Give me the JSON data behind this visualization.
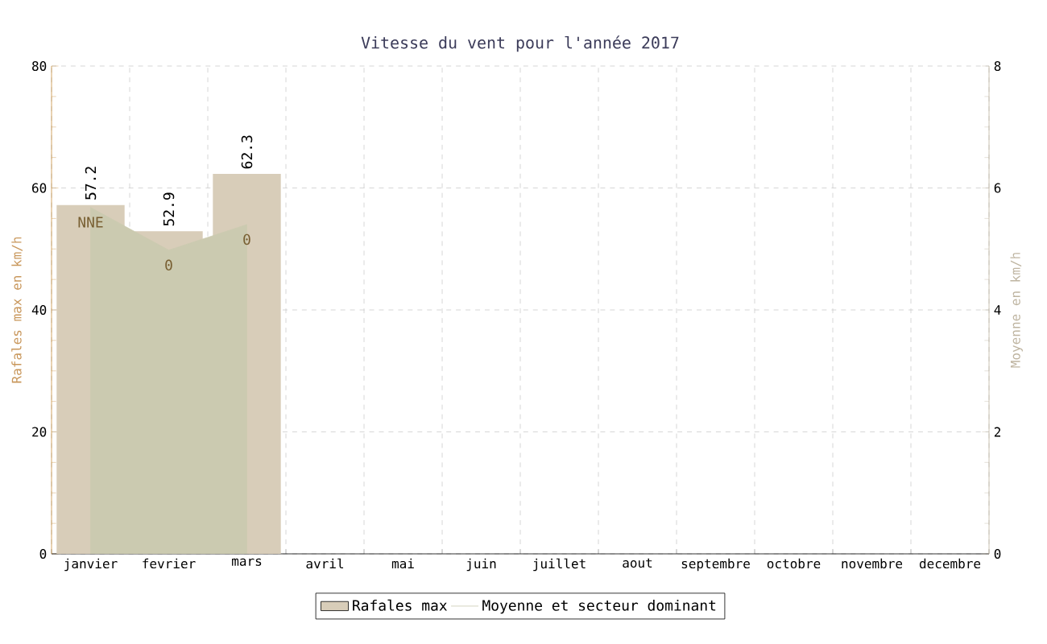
{
  "chart_data": {
    "type": "bar",
    "title": "Vitesse du vent pour l'année 2017",
    "categories": [
      "janvier",
      "fevrier",
      "mars",
      "avril",
      "mai",
      "juin",
      "juillet",
      "aout",
      "septembre",
      "octobre",
      "novembre",
      "decembre"
    ],
    "series": [
      {
        "name": "Rafales max",
        "color": "#d8cdb9",
        "values": [
          57.2,
          52.9,
          62.3,
          null,
          null,
          null,
          null,
          null,
          null,
          null,
          null,
          null
        ],
        "value_labels": [
          "57.2",
          "52.9",
          "62.3",
          null,
          null,
          null,
          null,
          null,
          null,
          null,
          null,
          null
        ]
      },
      {
        "name": "Moyenne et secteur dominant",
        "type": "area",
        "axis": "y2",
        "color": "#cbcab0",
        "values": [
          5.68,
          4.98,
          5.4,
          null,
          null,
          null,
          null,
          null,
          null,
          null,
          null,
          null
        ]
      }
    ],
    "annotations": [
      {
        "text": "NNE",
        "x": "janvier",
        "y": 56.8
      },
      {
        "text": "0",
        "x": "fevrier",
        "y": 49.8
      },
      {
        "text": "0",
        "x": "mars",
        "y": 54
      }
    ],
    "ylabel": "Rafales max en km/h",
    "y2label": "Moyenne en km/h",
    "ylim": [
      0,
      80
    ],
    "yticks": [
      0,
      20,
      40,
      60,
      80
    ],
    "y2lim": [
      0,
      8
    ],
    "y2ticks": [
      0,
      2,
      4,
      6,
      8
    ],
    "grid": true,
    "legend": "bottom"
  }
}
